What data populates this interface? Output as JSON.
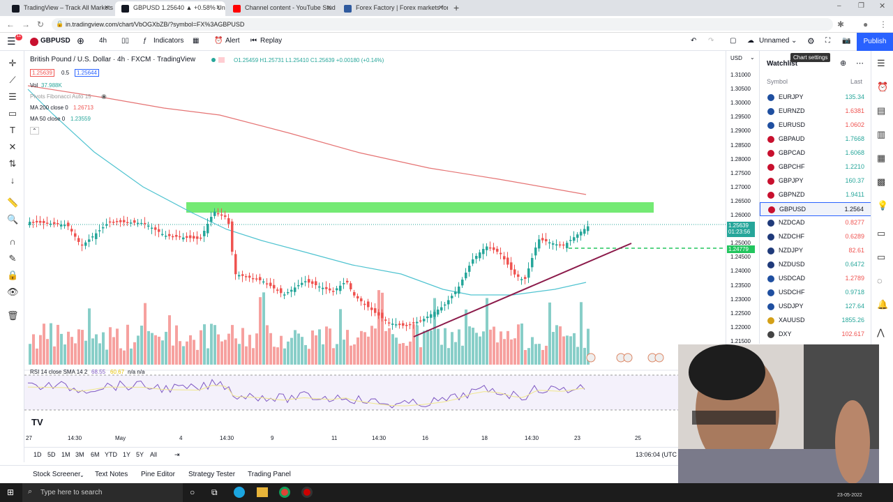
{
  "browser": {
    "tabs": [
      {
        "title": "TradingView – Track All Markets",
        "color": "#131722"
      },
      {
        "title": "GBPUSD 1.25640 ▲ +0.58% Unn",
        "color": "#131722"
      },
      {
        "title": "Channel content - YouTube Stud",
        "color": "#ff0000"
      },
      {
        "title": "Forex Factory | Forex markets for",
        "color": "#2f5a9e"
      }
    ],
    "url": "in.tradingview.com/chart/VbOGXbZB/?symbol=FX%3AGBPUSD"
  },
  "toolbar": {
    "symbol": "GBPUSD",
    "interval": "4h",
    "indicators": "Indicators",
    "alert": "Alert",
    "replay": "Replay",
    "layout_name": "Unnamed",
    "publish": "Publish",
    "tooltip": "Chart settings"
  },
  "legend": {
    "title": "British Pound / U.S. Dollar · 4h · FXCM · TradingView",
    "ohlc": "O1.25459 H1.25731 L1.25410 C1.25639 +0.00180 (+0.14%)",
    "bid": "1.25639",
    "spread": "0.5",
    "ask": "1.25644",
    "vol_label": "Vol",
    "vol_value": "37.988K",
    "pivots": "Pivots Fibonacci Auto 15",
    "ma200_label": "MA 200 close 0",
    "ma200_value": "1.26713",
    "ma50_label": "MA 50 close 0",
    "ma50_value": "1.23559",
    "rsi_label": "RSI 14 close SMA 14 2",
    "rsi_value": "68.55",
    "rsi_sma": "60.67",
    "rsi_na": "n/a n/a"
  },
  "price_axis": {
    "currency": "USD",
    "ticks": [
      "1.31000",
      "1.30500",
      "1.30000",
      "1.29500",
      "1.29000",
      "1.28500",
      "1.28000",
      "1.27500",
      "1.27000",
      "1.26500",
      "1.26000",
      "1.25500",
      "1.25000",
      "1.24500",
      "1.24000",
      "1.23500",
      "1.23000",
      "1.22500",
      "1.22000",
      "1.21500"
    ],
    "last_price": "1.25639",
    "countdown": "01:23:56",
    "line_price": "1.24779"
  },
  "time_axis": {
    "ticks": [
      "27",
      "14:30",
      "May",
      "4",
      "14:30",
      "9",
      "11",
      "14:30",
      "16",
      "18",
      "14:30",
      "23",
      "25"
    ]
  },
  "range_bar": {
    "ranges": [
      "1D",
      "5D",
      "1M",
      "3M",
      "6M",
      "YTD",
      "1Y",
      "5Y",
      "All"
    ],
    "clock": "13:06:04 (UTC"
  },
  "bottom_tabs": [
    "Stock Screener",
    "Text Notes",
    "Pine Editor",
    "Strategy Tester",
    "Trading Panel"
  ],
  "watchlist": {
    "title": "Watchlist",
    "col_symbol": "Symbol",
    "col_last": "Last",
    "rows": [
      {
        "symbol": "EURJPY",
        "last": "135.34",
        "dir": "up"
      },
      {
        "symbol": "EURNZD",
        "last": "1.6381",
        "dir": "dn"
      },
      {
        "symbol": "EURUSD",
        "last": "1.0602",
        "dir": "dn"
      },
      {
        "symbol": "GBPAUD",
        "last": "1.7668",
        "dir": "up"
      },
      {
        "symbol": "GBPCAD",
        "last": "1.6068",
        "dir": "up"
      },
      {
        "symbol": "GBPCHF",
        "last": "1.2210",
        "dir": "up"
      },
      {
        "symbol": "GBPJPY",
        "last": "160.37",
        "dir": "up"
      },
      {
        "symbol": "GBPNZD",
        "last": "1.9411",
        "dir": "up"
      },
      {
        "symbol": "GBPUSD",
        "last": "1.2564",
        "dir": "up",
        "selected": true
      },
      {
        "symbol": "NZDCAD",
        "last": "0.8277",
        "dir": "dn"
      },
      {
        "symbol": "NZDCHF",
        "last": "0.6289",
        "dir": "dn"
      },
      {
        "symbol": "NZDJPY",
        "last": "82.61",
        "dir": "dn"
      },
      {
        "symbol": "NZDUSD",
        "last": "0.6472",
        "dir": "up"
      },
      {
        "symbol": "USDCAD",
        "last": "1.2789",
        "dir": "dn"
      },
      {
        "symbol": "USDCHF",
        "last": "0.9718",
        "dir": "up"
      },
      {
        "symbol": "USDJPY",
        "last": "127.64",
        "dir": "up"
      },
      {
        "symbol": "XAUUSD",
        "last": "1855.26",
        "dir": "up"
      },
      {
        "symbol": "DXY",
        "last": "102.617",
        "dir": "dn"
      }
    ]
  },
  "taskbar": {
    "search_placeholder": "Type here to search",
    "date": "23-05-2022"
  },
  "colors": {
    "up": "#26a69a",
    "down": "#ef5350",
    "zone": "#5ce65c",
    "ma200": "#e57373",
    "ma50": "#4fc3d0",
    "accent": "#2962ff"
  }
}
